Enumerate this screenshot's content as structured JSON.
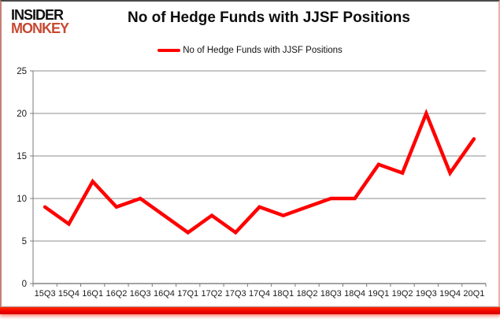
{
  "logo": {
    "line1": "INSIDER",
    "line2": "MONKEY",
    "line1_color": "#111111",
    "line2_color": "#C64A32"
  },
  "header": {
    "title": "No of Hedge Funds with JJSF Positions"
  },
  "legend": {
    "label": "No of Hedge Funds with JJSF Positions",
    "swatch_color": "#FF0000"
  },
  "chart_data": {
    "type": "line",
    "title": "No of Hedge Funds with JJSF Positions",
    "categories": [
      "15Q3",
      "15Q4",
      "16Q1",
      "16Q2",
      "16Q3",
      "16Q4",
      "17Q1",
      "17Q2",
      "17Q3",
      "17Q4",
      "18Q1",
      "18Q2",
      "18Q3",
      "18Q4",
      "19Q1",
      "19Q2",
      "19Q3",
      "19Q4",
      "20Q1"
    ],
    "series": [
      {
        "name": "No of Hedge Funds with JJSF Positions",
        "values": [
          9,
          7,
          12,
          9,
          10,
          8,
          6,
          8,
          6,
          9,
          8,
          9,
          10,
          10,
          14,
          13,
          20,
          13,
          17
        ],
        "color": "#FF0000"
      }
    ],
    "xlabel": "",
    "ylabel": "",
    "ylim": [
      0,
      25
    ],
    "yticks": [
      0,
      5,
      10,
      15,
      20,
      25
    ],
    "grid": true,
    "legend_position": "top",
    "line_width": 4.5,
    "grid_color": "#8c8c8c",
    "axis_color": "#7a7a7a",
    "tick_label_color": "#1a1a1a",
    "tick_label_size": 11
  }
}
